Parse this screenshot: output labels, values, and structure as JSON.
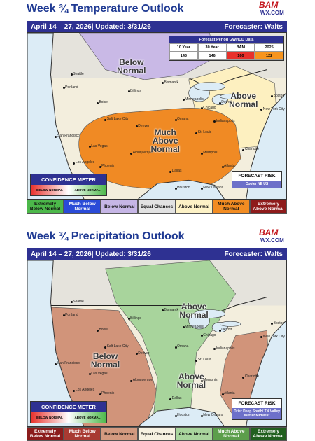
{
  "panels": [
    {
      "title": "Week ¾ Temperature Outlook",
      "logo": "BAM",
      "logo_sub": "WX.COM",
      "dates": "April 14 – 27, 2026| Updated: 3/31/26",
      "forecaster": "Forecaster: Walts",
      "regions": [
        {
          "label": "Below Normal"
        },
        {
          "label": "Much Above Normal"
        },
        {
          "label": "Above Normal"
        }
      ],
      "cities": [
        "Seattle",
        "Portland",
        "Boise",
        "Billings",
        "Bismarck",
        "Minneapolis",
        "Omaha",
        "Denver",
        "Salt Lake City",
        "San Francisco",
        "Las Vegas",
        "Los Angeles",
        "Phoenix",
        "Albuquerque",
        "Dallas",
        "Houston",
        "New Orleans",
        "Memphis",
        "Atlanta",
        "Charlotte",
        "Indianapolis",
        "St. Louis",
        "Chicago",
        "Detroit",
        "New York City",
        "Boston"
      ],
      "table": {
        "title": "Forecast Period GWHDD Data",
        "columns": [
          "10 Year",
          "30 Year",
          "BAM",
          "2025"
        ],
        "values": [
          143,
          146,
          160,
          122
        ],
        "colors": [
          "#ffffff",
          "#ffffff",
          "#e8312b",
          "#f7941d"
        ]
      },
      "confidence_meter": {
        "title": "CONFIDENCE METER",
        "labels": [
          "BELOW NORMAL",
          "ABOVE NORMAL"
        ]
      },
      "forecast_risk": {
        "title": "FORECAST RISK",
        "text": "Cooler NE US"
      },
      "legend": [
        {
          "label": "Extremely Below Normal",
          "color": "#4cb84a"
        },
        {
          "label": "Much Below Normal",
          "color": "#2a4bd7"
        },
        {
          "label": "Below Normal",
          "color": "#c6b6e6"
        },
        {
          "label": "Equal Chances",
          "color": "#e2e2e2"
        },
        {
          "label": "Above Normal",
          "color": "#fdf2c6"
        },
        {
          "label": "Much Above Normal",
          "color": "#f28c22"
        },
        {
          "label": "Extremely Above Normal",
          "color": "#8e1b1b"
        }
      ]
    },
    {
      "title": "Week ¾ Precipitation Outlook",
      "logo": "BAM",
      "logo_sub": "WX.COM",
      "dates": "April 14 – 27, 2026| Updated: 3/31/26",
      "forecaster": "Forecaster: Walts",
      "regions": [
        {
          "label": "Above Normal"
        },
        {
          "label": "Below Normal"
        },
        {
          "label": "Above Normal"
        }
      ],
      "cities": [
        "Seattle",
        "Portland",
        "Boise",
        "Billings",
        "Bismarck",
        "Minneapolis",
        "Omaha",
        "Denver",
        "Salt Lake City",
        "San Francisco",
        "Las Vegas",
        "Los Angeles",
        "Phoenix",
        "Albuquerque",
        "Dallas",
        "Houston",
        "New Orleans",
        "Memphis",
        "Atlanta",
        "Charlotte",
        "Indianapolis",
        "St. Louis",
        "Chicago",
        "Detroit",
        "New York City",
        "Boston"
      ],
      "confidence_meter": {
        "title": "CONFIDENCE METER",
        "labels": [
          "BELOW NORMAL",
          "ABOVE NORMAL"
        ]
      },
      "forecast_risk": {
        "title": "FORECAST RISK",
        "text": "Drier Deep South/ TN Valley Wetter Midwest"
      },
      "legend": [
        {
          "label": "Extremely Below Normal",
          "color": "#8b1c1c"
        },
        {
          "label": "Much Below Normal",
          "color": "#a83a32"
        },
        {
          "label": "Below Normal",
          "color": "#d39a80"
        },
        {
          "label": "Equal Chances",
          "color": "#f6f1e1"
        },
        {
          "label": "Above Normal",
          "color": "#a9d59d"
        },
        {
          "label": "Much Above Normal",
          "color": "#5c9e4b"
        },
        {
          "label": "Extremely Above Normal",
          "color": "#21601f"
        }
      ]
    }
  ]
}
